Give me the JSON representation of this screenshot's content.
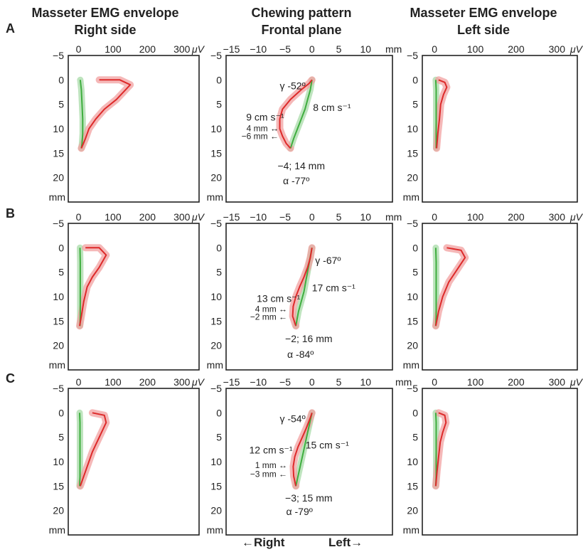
{
  "headers": {
    "left": [
      "Masseter EMG envelope",
      "Right side"
    ],
    "middle": [
      "Chewing pattern",
      "Frontal plane"
    ],
    "right": [
      "Masseter EMG envelope",
      "Left side"
    ]
  },
  "footer": {
    "right_label": "←Right",
    "left_label": "Left→"
  },
  "colors": {
    "closing": "#dd2a2a",
    "opening": "#3fae3f",
    "closing_band": "#f2a0a0",
    "opening_band": "#a3d9a3"
  },
  "chart_data": [
    {
      "row": "A",
      "type": "line",
      "emg_axes": {
        "xticks": [
          "0",
          "100",
          "200",
          "300"
        ],
        "xunit": "μV",
        "xlim": [
          -30,
          350
        ],
        "yticks": [
          "−5",
          "0",
          "5",
          "10",
          "15",
          "20"
        ],
        "yunit": "mm",
        "ylim": [
          -5,
          25
        ]
      },
      "path_axes": {
        "xticks": [
          "−15",
          "−10",
          "−5",
          "0",
          "5",
          "10"
        ],
        "xunit": "mm",
        "xlim": [
          -16,
          15
        ],
        "yticks": [
          "−5",
          "0",
          "5",
          "10",
          "15",
          "20"
        ],
        "yunit": "mm",
        "ylim": [
          -5,
          25
        ]
      },
      "emg_right": {
        "opening": {
          "x": [
            5,
            8,
            10,
            12,
            12,
            10,
            8
          ],
          "y": [
            0,
            2,
            5,
            8,
            11,
            13,
            14
          ]
        },
        "closing": {
          "x": [
            8,
            20,
            30,
            50,
            75,
            110,
            150,
            120,
            60
          ],
          "y": [
            14,
            12,
            10,
            8,
            6,
            4,
            1,
            0,
            0
          ]
        }
      },
      "emg_left": {
        "opening": {
          "x": [
            3,
            4,
            4,
            4,
            4,
            4,
            4
          ],
          "y": [
            0,
            2,
            5,
            8,
            11,
            13,
            14
          ]
        },
        "closing": {
          "x": [
            5,
            8,
            12,
            15,
            22,
            30,
            25,
            10
          ],
          "y": [
            14,
            11,
            8,
            5,
            3,
            1.5,
            0.5,
            0
          ]
        }
      },
      "path": {
        "opening": {
          "x": [
            0,
            -0.3,
            -0.8,
            -1.3,
            -2,
            -2.7,
            -3.4,
            -4
          ],
          "y": [
            0,
            2,
            4,
            6,
            8,
            10,
            12,
            14
          ]
        },
        "closing": {
          "x": [
            -4,
            -4.8,
            -5.5,
            -6,
            -6,
            -5.5,
            -4,
            -2,
            -0.5,
            0
          ],
          "y": [
            14,
            13,
            11.5,
            10,
            8,
            6,
            4,
            2,
            0.7,
            0
          ]
        }
      },
      "annotations": {
        "gamma": "γ -52º",
        "closing_speed": "9 cm s⁻¹",
        "opening_speed": "8 cm s⁻¹",
        "offset_a": "4 mm ↔",
        "offset_b": "−6 mm ←",
        "endpoint": "−4; 14 mm",
        "alpha": "α -77º"
      }
    },
    {
      "row": "B",
      "type": "line",
      "emg_axes": {
        "xticks": [
          "0",
          "100",
          "200",
          "300"
        ],
        "xunit": "μV",
        "xlim": [
          -30,
          350
        ],
        "yticks": [
          "−5",
          "0",
          "5",
          "10",
          "15",
          "20"
        ],
        "yunit": "mm",
        "ylim": [
          -5,
          25
        ]
      },
      "path_axes": {
        "xticks": [
          "−15",
          "−10",
          "−5",
          "0",
          "5",
          "10"
        ],
        "xunit": "mm",
        "xlim": [
          -16,
          15
        ],
        "yticks": [
          "−5",
          "0",
          "5",
          "10",
          "15",
          "20"
        ],
        "yunit": "mm",
        "ylim": [
          -5,
          25
        ]
      },
      "emg_right": {
        "opening": {
          "x": [
            4,
            5,
            5,
            5,
            5,
            5,
            4
          ],
          "y": [
            0,
            3,
            6,
            9,
            12,
            14,
            16
          ]
        },
        "closing": {
          "x": [
            3,
            8,
            15,
            25,
            40,
            60,
            80,
            60,
            20
          ],
          "y": [
            16,
            14,
            11,
            8,
            6,
            4,
            1.5,
            0,
            0
          ]
        }
      },
      "emg_left": {
        "opening": {
          "x": [
            3,
            4,
            4,
            4,
            4,
            4,
            3
          ],
          "y": [
            0,
            3,
            6,
            9,
            12,
            14,
            16
          ]
        },
        "closing": {
          "x": [
            3,
            10,
            20,
            35,
            55,
            75,
            65,
            30
          ],
          "y": [
            16,
            13,
            10,
            7,
            4.5,
            2,
            0.5,
            0
          ]
        }
      },
      "path": {
        "opening": {
          "x": [
            0,
            -0.5,
            -1,
            -1.5,
            -2,
            -2.5,
            -3
          ],
          "y": [
            0,
            3,
            6,
            9,
            11,
            13,
            16
          ]
        },
        "closing": {
          "x": [
            -3,
            -3.6,
            -3.5,
            -3,
            -2.3,
            -1.5,
            -0.8,
            -0.3,
            0
          ],
          "y": [
            16,
            14,
            12,
            10,
            8,
            6,
            4,
            2,
            0
          ]
        }
      },
      "annotations": {
        "gamma": "γ -67º",
        "closing_speed": "13 cm s⁻¹",
        "opening_speed": "17 cm s⁻¹",
        "offset_a": "4 mm ↔",
        "offset_b": "−2 mm ←",
        "endpoint": "−2; 16 mm",
        "alpha": "α -84º"
      }
    },
    {
      "row": "C",
      "type": "line",
      "emg_axes": {
        "xticks": [
          "0",
          "100",
          "200",
          "300"
        ],
        "xunit": "μV",
        "xlim": [
          -30,
          350
        ],
        "yticks": [
          "−5",
          "0",
          "5",
          "10",
          "15",
          "20"
        ],
        "yunit": "mm",
        "ylim": [
          -5,
          25
        ]
      },
      "path_axes": {
        "xticks": [
          "−15",
          "−10",
          "−5",
          "0",
          "5",
          "10",
          "mm"
        ],
        "xunit": "",
        "xlim": [
          -16,
          15
        ],
        "yticks": [
          "−5",
          "0",
          "5",
          "10",
          "15",
          "20"
        ],
        "yunit": "mm",
        "ylim": [
          -5,
          25
        ]
      },
      "emg_right": {
        "opening": {
          "x": [
            3,
            4,
            4,
            4,
            4,
            4,
            3
          ],
          "y": [
            0,
            2,
            5,
            8,
            11,
            13,
            15
          ]
        },
        "closing": {
          "x": [
            5,
            15,
            25,
            40,
            60,
            80,
            75,
            40
          ],
          "y": [
            15,
            13,
            11,
            8,
            5,
            2,
            0.5,
            0
          ]
        }
      },
      "emg_left": {
        "opening": {
          "x": [
            3,
            4,
            4,
            4,
            4,
            4,
            3
          ],
          "y": [
            0,
            2,
            5,
            8,
            11,
            13,
            15
          ]
        },
        "closing": {
          "x": [
            3,
            6,
            10,
            14,
            20,
            28,
            25,
            10
          ],
          "y": [
            15,
            12,
            9,
            6,
            4,
            2,
            0.5,
            0
          ]
        }
      },
      "path": {
        "opening": {
          "x": [
            0,
            -0.5,
            -1,
            -1.5,
            -2,
            -2.5,
            -3
          ],
          "y": [
            0,
            2.5,
            5,
            7.5,
            10,
            12.5,
            15
          ]
        },
        "closing": {
          "x": [
            -3,
            -3.4,
            -3.5,
            -3.2,
            -2.6,
            -1.8,
            -1,
            -0.3,
            0
          ],
          "y": [
            15,
            13,
            11,
            9,
            7,
            5,
            3,
            1,
            0
          ]
        }
      },
      "annotations": {
        "gamma": "γ -54º",
        "closing_speed": "12 cm s⁻¹",
        "opening_speed": "15 cm s⁻¹",
        "offset_a": "1 mm ↔",
        "offset_b": "−3 mm ←",
        "endpoint": "−3; 15 mm",
        "alpha": "α -79º"
      }
    }
  ]
}
